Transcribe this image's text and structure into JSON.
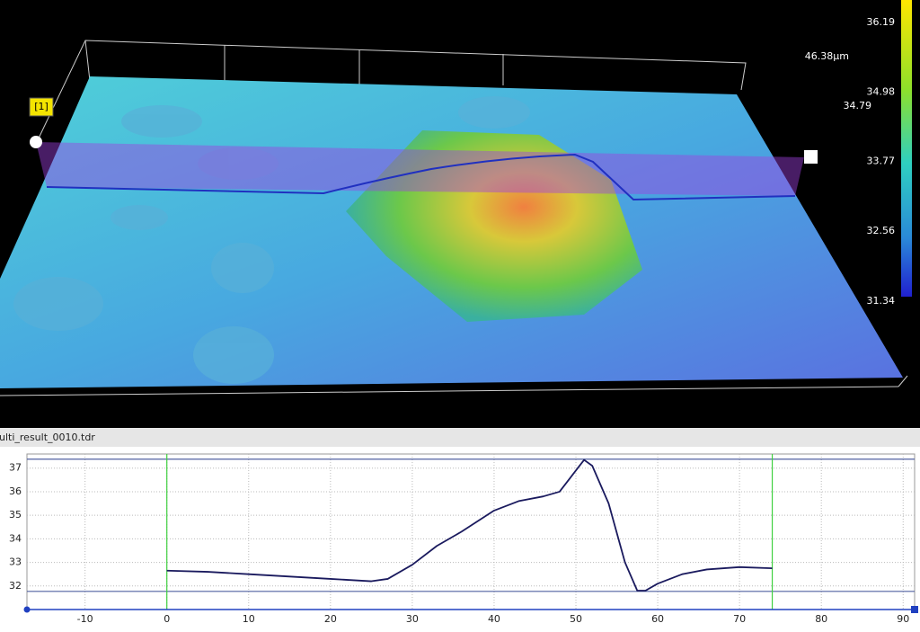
{
  "view3d": {
    "marker": "[1]",
    "height_label": "46.38µm",
    "value_label": "34.79",
    "colorbar": {
      "ticks": [
        36.19,
        34.98,
        33.77,
        32.56,
        31.34
      ]
    }
  },
  "file_name": "ulti_result_0010.tdr",
  "chart_data": {
    "type": "line",
    "x": [
      0,
      5,
      10,
      15,
      20,
      25,
      27,
      30,
      33,
      36,
      40,
      43,
      46,
      48,
      50,
      51,
      52,
      54,
      56,
      57.5,
      58.5,
      60,
      63,
      66,
      70,
      74
    ],
    "series": [
      {
        "color": "#1a1a5e",
        "values": [
          32.65,
          32.6,
          32.5,
          32.4,
          32.3,
          32.2,
          32.3,
          32.9,
          33.7,
          34.3,
          35.2,
          35.6,
          35.8,
          36.0,
          36.9,
          37.35,
          37.1,
          35.5,
          33.0,
          31.8,
          31.8,
          32.1,
          32.5,
          32.7,
          32.8,
          32.75
        ]
      }
    ],
    "xlim": [
      -17.1,
      91.4
    ],
    "ylim": [
      31.0,
      37.6
    ],
    "xticks": [
      -10,
      0,
      10,
      20,
      30,
      40,
      50,
      60,
      70,
      80,
      90
    ],
    "yticks": [
      32,
      33,
      34,
      35,
      36,
      37
    ],
    "grid": true,
    "cursors": [
      0,
      74
    ],
    "levels": [
      37.38,
      31.77
    ]
  }
}
